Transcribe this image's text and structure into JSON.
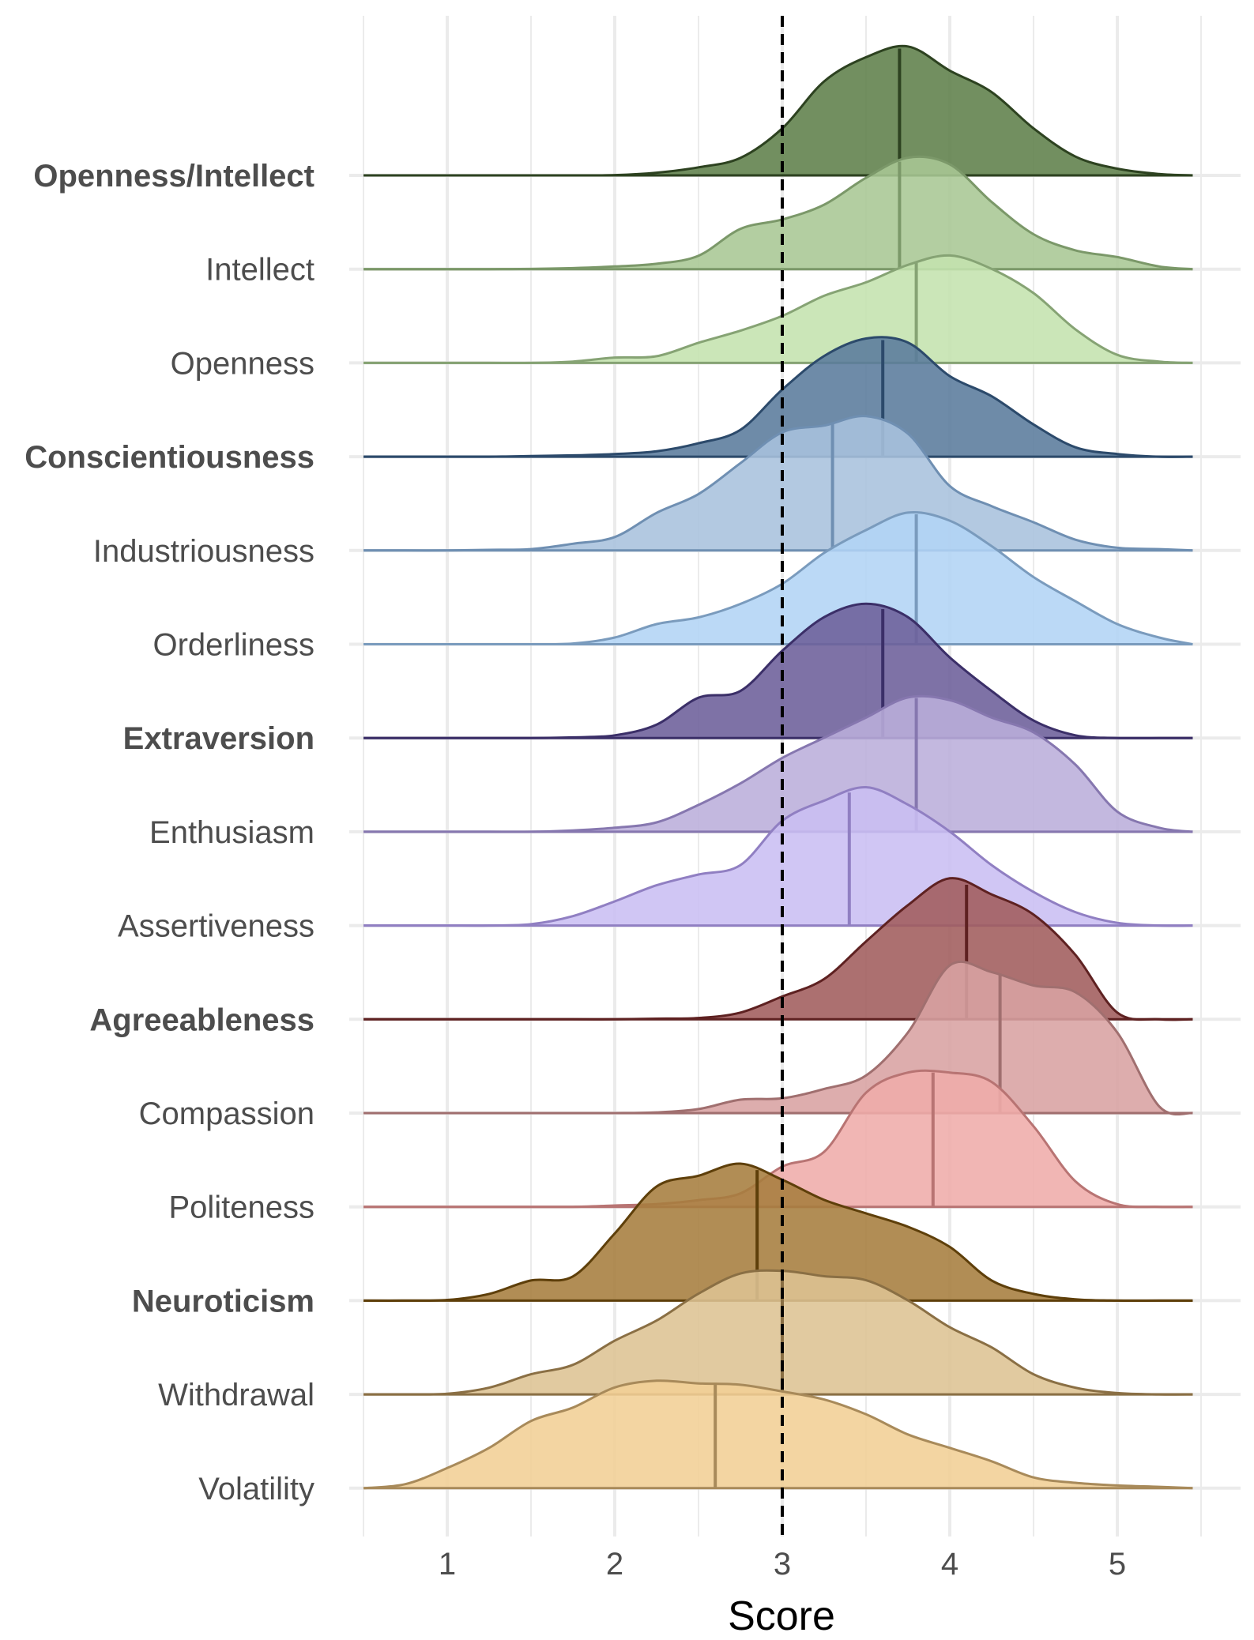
{
  "chart_data": {
    "type": "ridgeline",
    "title": "",
    "xlabel": "Score",
    "ylabel": "",
    "xlim": [
      0.5,
      5.5
    ],
    "x_ticks": [
      1,
      2,
      3,
      4,
      5
    ],
    "grid": true,
    "reference_line": {
      "x": 3,
      "style": "dashed"
    },
    "x": [
      0.5,
      0.75,
      1,
      1.25,
      1.5,
      1.75,
      2,
      2.25,
      2.5,
      2.75,
      3,
      3.25,
      3.5,
      3.75,
      4,
      4.25,
      4.5,
      4.75,
      5,
      5.25,
      5.45
    ],
    "series": [
      {
        "name": "Openness/Intellect",
        "bold": true,
        "mean": 3.7,
        "fill": "#5e7f4a",
        "stroke": "#2d4220",
        "density": [
          0,
          0,
          0,
          0,
          0,
          0,
          0.002,
          0.02,
          0.06,
          0.13,
          0.35,
          0.7,
          0.88,
          0.96,
          0.78,
          0.62,
          0.35,
          0.14,
          0.05,
          0.01,
          0
        ]
      },
      {
        "name": "Intellect",
        "bold": false,
        "mean": 3.7,
        "fill": "#a8c794",
        "stroke": "#7b9869",
        "density": [
          0,
          0,
          0,
          0,
          0.002,
          0.008,
          0.02,
          0.04,
          0.1,
          0.3,
          0.37,
          0.48,
          0.68,
          0.83,
          0.78,
          0.5,
          0.26,
          0.14,
          0.09,
          0.02,
          0
        ]
      },
      {
        "name": "Openness",
        "bold": false,
        "mean": 3.8,
        "fill": "#c4e2ae",
        "stroke": "#86a374",
        "density": [
          0,
          0,
          0,
          0,
          0,
          0.01,
          0.04,
          0.05,
          0.15,
          0.24,
          0.35,
          0.5,
          0.6,
          0.73,
          0.8,
          0.7,
          0.52,
          0.25,
          0.06,
          0.01,
          0
        ]
      },
      {
        "name": "Conscientiousness",
        "bold": true,
        "mean": 3.6,
        "fill": "#5a7b9c",
        "stroke": "#2c4a6b",
        "density": [
          0,
          0,
          0,
          0,
          0.005,
          0.01,
          0.02,
          0.04,
          0.1,
          0.2,
          0.5,
          0.75,
          0.88,
          0.85,
          0.6,
          0.45,
          0.24,
          0.07,
          0.02,
          0,
          0
        ]
      },
      {
        "name": "Industriousness",
        "bold": false,
        "mean": 3.3,
        "fill": "#a9c2dd",
        "stroke": "#6f8fb2",
        "density": [
          0,
          0,
          0,
          0.005,
          0.01,
          0.05,
          0.1,
          0.28,
          0.42,
          0.65,
          0.88,
          0.93,
          1.0,
          0.87,
          0.48,
          0.33,
          0.21,
          0.08,
          0.02,
          0.01,
          0
        ]
      },
      {
        "name": "Orderliness",
        "bold": false,
        "mean": 3.8,
        "fill": "#b2d4f5",
        "stroke": "#7a9bbd",
        "density": [
          0,
          0,
          0,
          0,
          0,
          0.005,
          0.05,
          0.15,
          0.2,
          0.3,
          0.45,
          0.68,
          0.85,
          0.98,
          0.92,
          0.73,
          0.5,
          0.32,
          0.15,
          0.05,
          0
        ]
      },
      {
        "name": "Extraversion",
        "bold": true,
        "mean": 3.6,
        "fill": "#6c5e9a",
        "stroke": "#3b2f68",
        "density": [
          0,
          0,
          0,
          0,
          0,
          0.005,
          0.02,
          0.1,
          0.3,
          0.35,
          0.65,
          0.9,
          1.0,
          0.9,
          0.6,
          0.35,
          0.13,
          0.02,
          0,
          0,
          0
        ]
      },
      {
        "name": "Enthusiasm",
        "bold": false,
        "mean": 3.8,
        "fill": "#bbaedb",
        "stroke": "#8677af",
        "density": [
          0,
          0,
          0,
          0,
          0,
          0.01,
          0.03,
          0.07,
          0.2,
          0.36,
          0.55,
          0.7,
          0.85,
          1.0,
          0.98,
          0.85,
          0.74,
          0.5,
          0.15,
          0.03,
          0
        ]
      },
      {
        "name": "Assertiveness",
        "bold": false,
        "mean": 3.4,
        "fill": "#cabef3",
        "stroke": "#907fc2",
        "density": [
          0,
          0,
          0,
          0,
          0.01,
          0.07,
          0.18,
          0.3,
          0.38,
          0.45,
          0.78,
          0.93,
          1.03,
          0.9,
          0.7,
          0.45,
          0.25,
          0.1,
          0.02,
          0,
          0
        ]
      },
      {
        "name": "Agreeableness",
        "bold": true,
        "mean": 4.1,
        "fill": "#a15c5c",
        "stroke": "#5e2121",
        "density": [
          0,
          0,
          0,
          0,
          0,
          0,
          0,
          0.005,
          0.01,
          0.05,
          0.17,
          0.3,
          0.58,
          0.85,
          1.05,
          0.93,
          0.78,
          0.48,
          0.05,
          0,
          0
        ]
      },
      {
        "name": "Compassion",
        "bold": false,
        "mean": 4.3,
        "fill": "#d8a2a2",
        "stroke": "#a06f6f",
        "density": [
          0,
          0,
          0,
          0,
          0,
          0,
          0,
          0.005,
          0.03,
          0.1,
          0.11,
          0.18,
          0.28,
          0.6,
          1.1,
          1.05,
          0.95,
          0.9,
          0.6,
          0.05,
          0
        ]
      },
      {
        "name": "Politeness",
        "bold": false,
        "mean": 3.9,
        "fill": "#efacaa",
        "stroke": "#b87473",
        "density": [
          0,
          0,
          0,
          0,
          0,
          0,
          0.01,
          0.02,
          0.05,
          0.1,
          0.3,
          0.41,
          0.85,
          1.0,
          1.0,
          0.93,
          0.6,
          0.19,
          0.02,
          0,
          0
        ]
      },
      {
        "name": "Neuroticism",
        "bold": true,
        "mean": 2.85,
        "fill": "#a67d3d",
        "stroke": "#5e3f0a",
        "density": [
          0,
          0,
          0.005,
          0.05,
          0.15,
          0.18,
          0.5,
          0.85,
          0.93,
          1.02,
          0.9,
          0.75,
          0.65,
          0.55,
          0.4,
          0.15,
          0.05,
          0.01,
          0,
          0,
          0
        ]
      },
      {
        "name": "Withdrawal",
        "bold": false,
        "mean": 3.0,
        "fill": "#ddc393",
        "stroke": "#8a6f44",
        "density": [
          0,
          0,
          0.005,
          0.05,
          0.15,
          0.22,
          0.4,
          0.55,
          0.75,
          0.9,
          0.92,
          0.88,
          0.85,
          0.7,
          0.5,
          0.35,
          0.15,
          0.05,
          0.01,
          0,
          0
        ]
      },
      {
        "name": "Volatility",
        "bold": false,
        "mean": 2.6,
        "fill": "#f1cf95",
        "stroke": "#a88a5a",
        "density": [
          0,
          0.03,
          0.15,
          0.3,
          0.5,
          0.6,
          0.75,
          0.8,
          0.78,
          0.77,
          0.72,
          0.66,
          0.55,
          0.4,
          0.3,
          0.2,
          0.08,
          0.04,
          0.02,
          0.01,
          0
        ]
      }
    ]
  }
}
